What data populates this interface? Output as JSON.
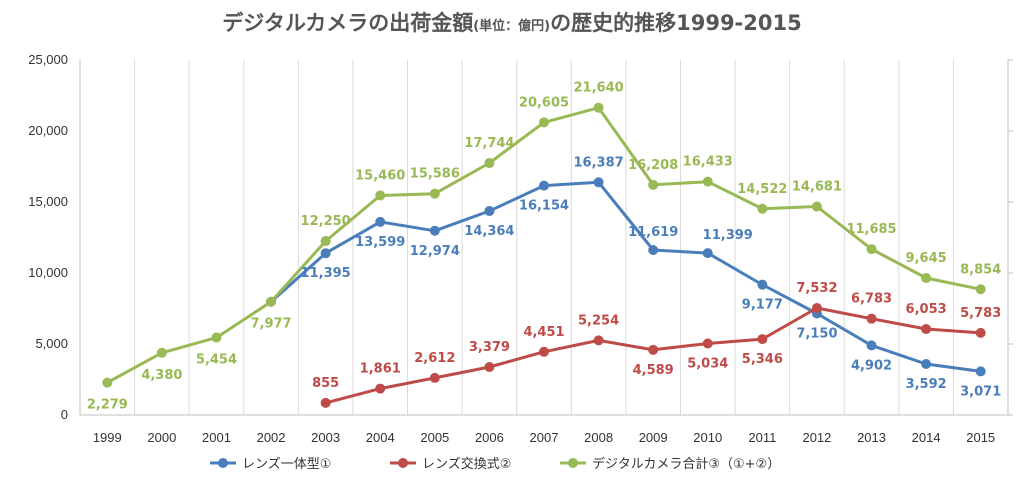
{
  "chart_data": {
    "type": "line",
    "title": {
      "main": "デジタルカメラの出荷金額",
      "unit": "(単位：億円)",
      "rest": "の歴史的推移1999-2015"
    },
    "categories": [
      "1999",
      "2000",
      "2001",
      "2002",
      "2003",
      "2004",
      "2005",
      "2006",
      "2007",
      "2008",
      "2009",
      "2010",
      "2011",
      "2012",
      "2013",
      "2014",
      "2015"
    ],
    "ylim": [
      0,
      25000
    ],
    "yticks": [
      0,
      5000,
      10000,
      15000,
      20000,
      25000
    ],
    "ytick_labels": [
      "0",
      "5,000",
      "10,000",
      "15,000",
      "20,000",
      "25,000"
    ],
    "grid": "vertical",
    "legend_position": "bottom",
    "series": [
      {
        "name": "レンズ一体型①",
        "color": "#4a7ebb",
        "values": [
          null,
          null,
          null,
          7977,
          11395,
          13599,
          12974,
          14364,
          16154,
          16387,
          11619,
          11399,
          9177,
          7150,
          4902,
          3592,
          3071
        ],
        "labels": [
          "",
          "",
          "",
          "",
          "11,395",
          "13,599",
          "12,974",
          "14,364",
          "16,154",
          "16,387",
          "11,619",
          "11,399",
          "9,177",
          "7,150",
          "4,902",
          "3,592",
          "3,071"
        ]
      },
      {
        "name": "レンズ交換式②",
        "color": "#be4b48",
        "values": [
          null,
          null,
          null,
          null,
          855,
          1861,
          2612,
          3379,
          4451,
          5254,
          4589,
          5034,
          5346,
          7532,
          6783,
          6053,
          5783
        ],
        "labels": [
          "",
          "",
          "",
          "",
          "855",
          "1,861",
          "2,612",
          "3,379",
          "4,451",
          "5,254",
          "4,589",
          "5,034",
          "5,346",
          "7,532",
          "6,783",
          "6,053",
          "5,783"
        ]
      },
      {
        "name": "デジタルカメラ合計③（①+②）",
        "color": "#98b954",
        "values": [
          2279,
          4380,
          5454,
          7977,
          12250,
          15460,
          15586,
          17744,
          20605,
          21640,
          16208,
          16433,
          14522,
          14681,
          11685,
          9645,
          8854
        ],
        "labels": [
          "2,279",
          "4,380",
          "5,454",
          "7,977",
          "12,250",
          "15,460",
          "15,586",
          "17,744",
          "20,605",
          "21,640",
          "16,208",
          "16,433",
          "14,522",
          "14,681",
          "11,685",
          "9,645",
          "8,854"
        ]
      }
    ]
  }
}
